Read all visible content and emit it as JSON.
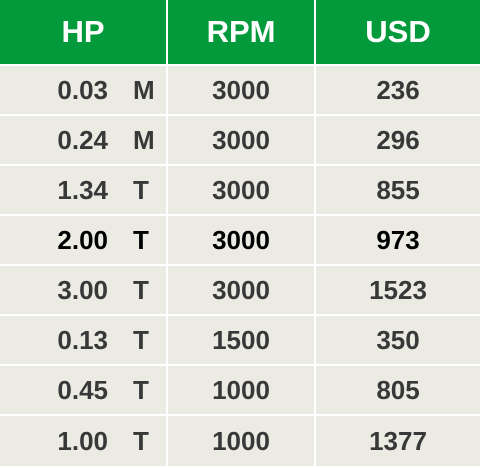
{
  "headers": {
    "hp": "HP",
    "rpm": "RPM",
    "usd": "USD"
  },
  "rows": [
    {
      "hp": "0.03",
      "type": "M",
      "rpm": "3000",
      "usd": "236"
    },
    {
      "hp": "0.24",
      "type": "M",
      "rpm": "3000",
      "usd": "296"
    },
    {
      "hp": "1.34",
      "type": "T",
      "rpm": "3000",
      "usd": "855"
    },
    {
      "hp": "2.00",
      "type": "T",
      "rpm": "3000",
      "usd": "973"
    },
    {
      "hp": "3.00",
      "type": "T",
      "rpm": "3000",
      "usd": "1523"
    },
    {
      "hp": "0.13",
      "type": "T",
      "rpm": "1500",
      "usd": "350"
    },
    {
      "hp": "0.45",
      "type": "T",
      "rpm": "1000",
      "usd": "805"
    },
    {
      "hp": "1.00",
      "type": "T",
      "rpm": "1000",
      "usd": "1377"
    }
  ],
  "colors": {
    "header_bg": "#039a3b",
    "row_bg": "#ecebe3",
    "text": "#383838"
  }
}
